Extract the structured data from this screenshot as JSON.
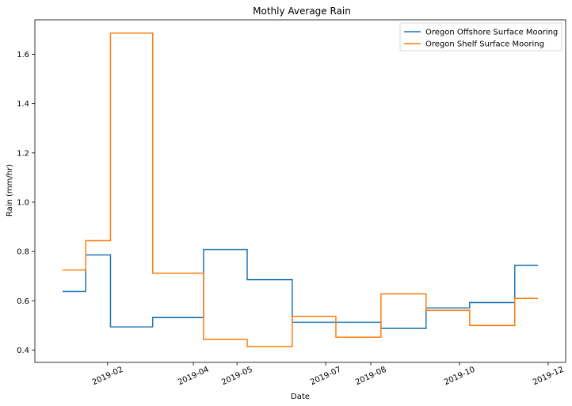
{
  "chart_data": {
    "type": "line",
    "step": "post",
    "title": "Mothly Average Rain",
    "xlabel": "Date",
    "ylabel": "Rain (mm/hr)",
    "xlim": [
      "2018-12-13",
      "2019-12-13"
    ],
    "ylim": [
      0.35,
      1.74
    ],
    "x_ticks": [
      "2019-02",
      "2019-04",
      "2019-05",
      "2019-07",
      "2019-08",
      "2019-10",
      "2019-12"
    ],
    "x_tick_dates": [
      "2019-02-01",
      "2019-04-01",
      "2019-05-01",
      "2019-07-01",
      "2019-08-01",
      "2019-10-01",
      "2019-12-01"
    ],
    "y_ticks": [
      "0.4",
      "0.6",
      "0.8",
      "1.0",
      "1.2",
      "1.4",
      "1.6"
    ],
    "legend_position": "top-right",
    "series": [
      {
        "name": "Oregon Offshore Surface Mooring",
        "color": "#1f77b4",
        "x": [
          "2019-01-01",
          "2019-01-17",
          "2019-02-03",
          "2019-03-04",
          "2019-04-08",
          "2019-05-08",
          "2019-06-08",
          "2019-07-08",
          "2019-08-08",
          "2019-09-08",
          "2019-10-08",
          "2019-11-08",
          "2019-11-24"
        ],
        "values": [
          0.638,
          0.786,
          0.494,
          0.532,
          0.808,
          0.686,
          0.513,
          0.513,
          0.488,
          0.571,
          0.593,
          0.744,
          0.744
        ]
      },
      {
        "name": "Oregon Shelf Surface Mooring",
        "color": "#ff7f0e",
        "x": [
          "2019-01-01",
          "2019-01-17",
          "2019-02-03",
          "2019-03-04",
          "2019-04-08",
          "2019-05-08",
          "2019-06-08",
          "2019-07-08",
          "2019-08-08",
          "2019-09-08",
          "2019-10-08",
          "2019-11-08",
          "2019-11-24"
        ],
        "values": [
          0.725,
          0.844,
          1.686,
          0.712,
          0.443,
          0.414,
          0.536,
          0.452,
          0.628,
          0.561,
          0.5,
          0.61,
          0.61
        ]
      }
    ]
  }
}
